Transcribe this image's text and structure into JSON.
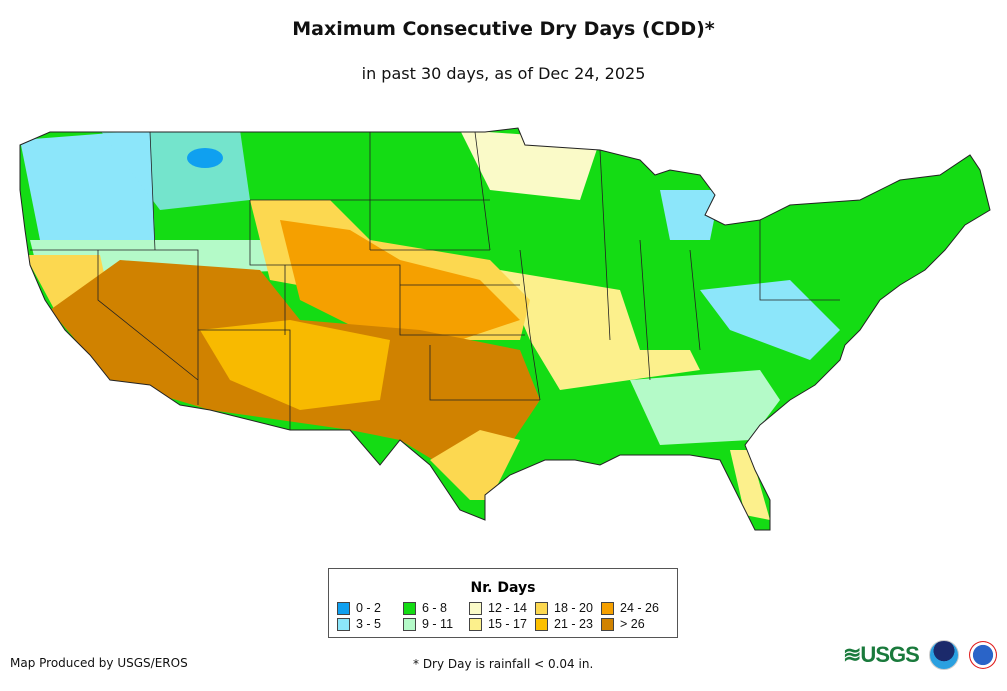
{
  "title": "Maximum Consecutive Dry Days (CDD)*",
  "subtitle": "in past 30 days, as of Dec 24, 2025",
  "legend": {
    "title": "Nr. Days",
    "items": [
      {
        "label": "0 - 2",
        "color": "#0fa0f0"
      },
      {
        "label": "6 - 8",
        "color": "#14dc14"
      },
      {
        "label": "12 - 14",
        "color": "#fafac8"
      },
      {
        "label": "18 - 20",
        "color": "#fcd850"
      },
      {
        "label": "24 - 26",
        "color": "#f5a000"
      },
      {
        "label": "3 - 5",
        "color": "#8ce6fa"
      },
      {
        "label": "9 - 11",
        "color": "#b4fac8"
      },
      {
        "label": "15 - 17",
        "color": "#fcf08c"
      },
      {
        "label": "21 - 23",
        "color": "#fcc000"
      },
      {
        "label": "> 26",
        "color": "#d08200"
      }
    ]
  },
  "footer": {
    "credit": "Map Produced by USGS/EROS",
    "note": "* Dry Day is rainfall < 0.04 in.",
    "logos": [
      "USGS science for a changing world",
      "NOAA",
      "National Weather Service"
    ]
  }
}
